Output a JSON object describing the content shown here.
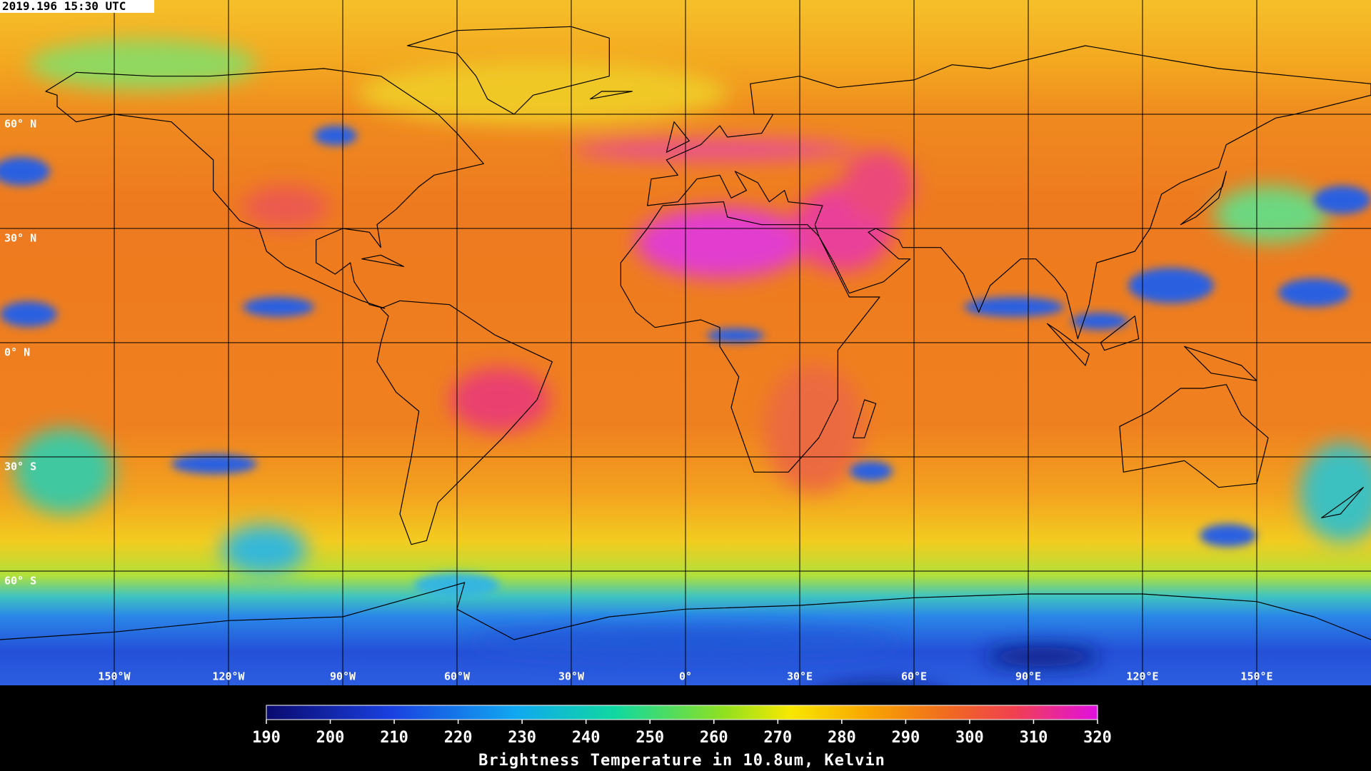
{
  "header": {
    "timestamp": "2019.196 15:30 UTC"
  },
  "map": {
    "xlim": [
      -180,
      180
    ],
    "ylim": [
      -90,
      90
    ],
    "lat_labels": [
      {
        "value": 60,
        "label": "60° N"
      },
      {
        "value": 30,
        "label": "30° N"
      },
      {
        "value": 0,
        "label": "0° N"
      },
      {
        "value": -30,
        "label": "30° S"
      },
      {
        "value": -60,
        "label": "60° S"
      }
    ],
    "lon_labels": [
      {
        "value": -150,
        "label": "150°W"
      },
      {
        "value": -120,
        "label": "120°W"
      },
      {
        "value": -90,
        "label": "90°W"
      },
      {
        "value": -60,
        "label": "60°W"
      },
      {
        "value": -30,
        "label": "30°W"
      },
      {
        "value": 0,
        "label": "0°"
      },
      {
        "value": 30,
        "label": "30°E"
      },
      {
        "value": 60,
        "label": "60°E"
      },
      {
        "value": 90,
        "label": "90°E"
      },
      {
        "value": 120,
        "label": "120°E"
      },
      {
        "value": 150,
        "label": "150°E"
      }
    ]
  },
  "colorbar": {
    "range": [
      190,
      320
    ],
    "ticks": [
      190,
      200,
      210,
      220,
      230,
      240,
      250,
      260,
      270,
      280,
      290,
      300,
      310,
      320
    ],
    "title": "Brightness Temperature in 10.8um, Kelvin"
  }
}
